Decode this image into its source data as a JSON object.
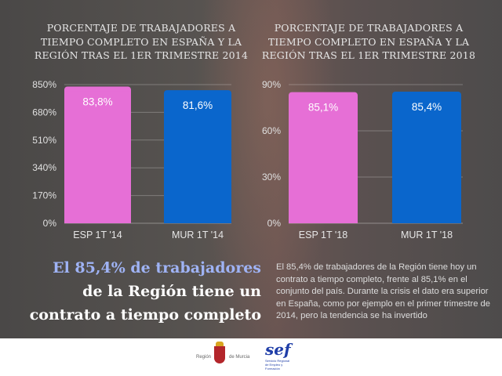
{
  "chart_data": [
    {
      "type": "bar",
      "title": "PORCENTAJE DE TRABAJADORES A TIEMPO COMPLETO EN ESPAÑA Y LA REGIÓN TRAS EL 1ER TRIMESTRE 2014",
      "title_lines": [
        "PORCENTAJE DE TRABAJADORES A",
        "TIEMPO COMPLETO EN ESPAÑA Y LA",
        "REGIÓN TRAS EL 1ER TRIMESTRE 2014"
      ],
      "categories": [
        "ESP 1T '14",
        "MUR 1T '14"
      ],
      "values": [
        83.8,
        81.6
      ],
      "value_labels": [
        "83,8%",
        "81,6%"
      ],
      "yticks": [
        "0%",
        "170%",
        "340%",
        "510%",
        "680%",
        "850%"
      ],
      "ylim": [
        0,
        850
      ],
      "grid": true,
      "colors": [
        "#e66fd6",
        "#0a66cc"
      ]
    },
    {
      "type": "bar",
      "title": "PORCENTAJE DE TRABAJADORES A TIEMPO COMPLETO EN ESPAÑA Y LA REGIÓN TRAS EL 1ER TRIMESTRE 2018",
      "title_lines": [
        "PORCENTAJE DE TRABAJADORES A",
        "TIEMPO COMPLETO EN ESPAÑA Y LA",
        "REGIÓN TRAS EL 1ER TRIMESTRE 2018"
      ],
      "categories": [
        "ESP 1T '18",
        "MUR 1T '18"
      ],
      "values": [
        85.1,
        85.4
      ],
      "value_labels": [
        "85,1%",
        "85,4%"
      ],
      "yticks": [
        "0%",
        "30%",
        "60%",
        "90%"
      ],
      "ylim": [
        0,
        90
      ],
      "grid": true,
      "colors": [
        "#e66fd6",
        "#0a66cc"
      ]
    }
  ],
  "headline": {
    "lines": [
      "El 85,4% de trabajadores",
      "de la Región tiene un",
      "contrato a tiempo completo"
    ],
    "accent": "#9fb3f5"
  },
  "paragraph": "El 85,4% de trabajadores de la Región tiene hoy un contrato a tiempo completo, frente al 85,1% en el conjunto del país. Durante la crisis el dato era superior en España, como por ejemplo en el primer trimestre de 2014, pero la tendencia se ha invertido",
  "footer": {
    "logo1_left": "Región",
    "logo1_right": "de Murcia",
    "logo2": "sef",
    "logo2_sub": "Servicio Regional de Empleo y Formación"
  }
}
